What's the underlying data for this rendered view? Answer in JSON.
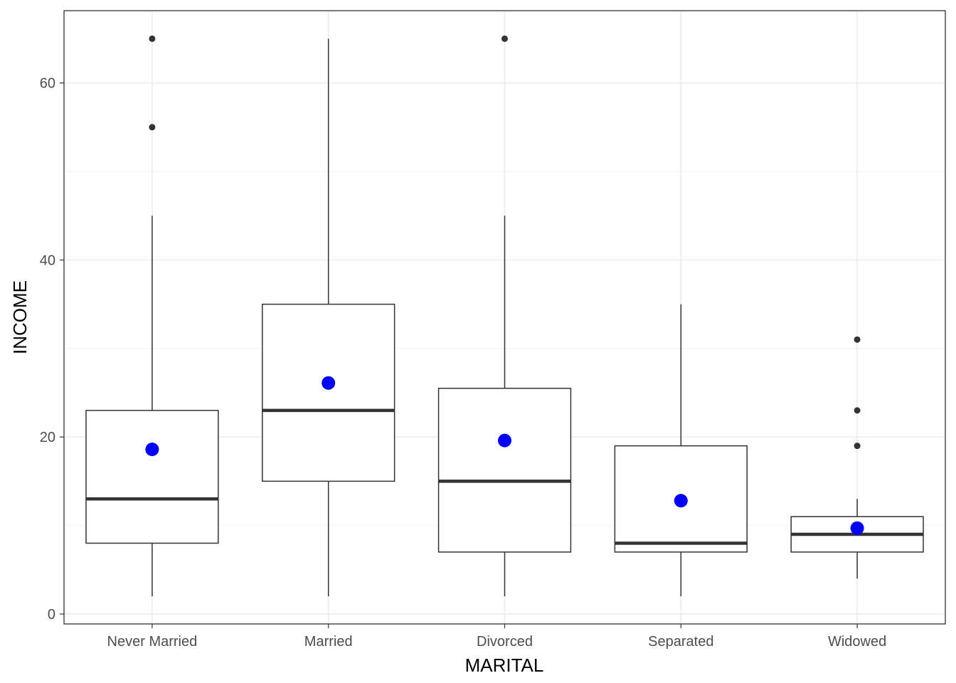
{
  "chart_data": {
    "type": "boxplot",
    "title": "",
    "xlabel": "MARITAL",
    "ylabel": "INCOME",
    "ylim": [
      -1,
      68
    ],
    "y_ticks": [
      0,
      20,
      40,
      60
    ],
    "grid": true,
    "categories": [
      "Never Married",
      "Married",
      "Divorced",
      "Separated",
      "Widowed"
    ],
    "boxes": [
      {
        "category": "Never Married",
        "whisker_low": 2,
        "q1": 8,
        "median": 13,
        "q3": 23,
        "whisker_high": 45,
        "mean": 18.6,
        "outliers": [
          55,
          65
        ]
      },
      {
        "category": "Married",
        "whisker_low": 2,
        "q1": 15,
        "median": 23,
        "q3": 35,
        "whisker_high": 65,
        "mean": 26.1,
        "outliers": []
      },
      {
        "category": "Divorced",
        "whisker_low": 2,
        "q1": 7,
        "median": 15,
        "q3": 25.5,
        "whisker_high": 45,
        "mean": 19.6,
        "outliers": [
          65
        ]
      },
      {
        "category": "Separated",
        "whisker_low": 2,
        "q1": 7,
        "median": 8,
        "q3": 19,
        "whisker_high": 35,
        "mean": 12.8,
        "outliers": []
      },
      {
        "category": "Widowed",
        "whisker_low": 4,
        "q1": 7,
        "median": 9,
        "q3": 11,
        "whisker_high": 13,
        "mean": 9.7,
        "outliers": [
          19,
          23,
          31
        ]
      }
    ],
    "colors": {
      "mean_point": "#0000ff",
      "box_stroke": "#333333",
      "outlier": "#333333",
      "grid_major": "#ebebeb",
      "grid_minor": "#f3f3f3",
      "panel_border": "#333333"
    }
  }
}
